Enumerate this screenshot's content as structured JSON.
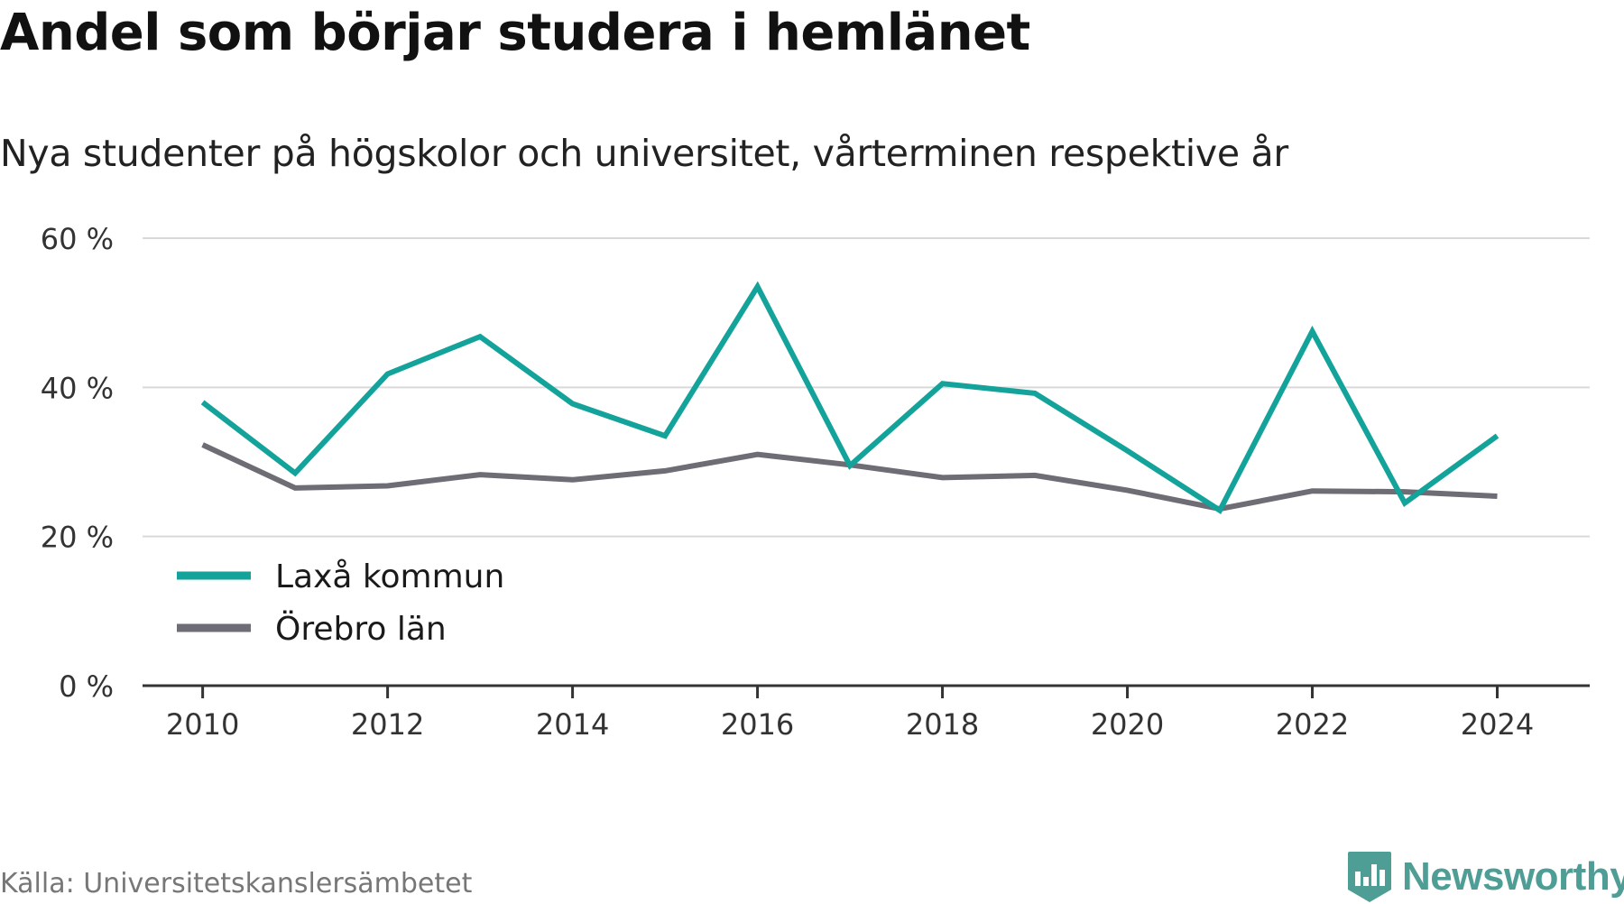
{
  "header": {
    "title": "Andel som börjar studera i hemlänet",
    "subtitle": "Nya studenter på högskolor och universitet, vårterminen respektive år"
  },
  "footer": {
    "source": "Källa: Universitetskanslersämbetet",
    "brand": "Newsworthy",
    "brand_icon": "bar-chart-badge-icon",
    "brand_color": "#4f9e96"
  },
  "chart_data": {
    "type": "line",
    "x": [
      2010,
      2011,
      2012,
      2013,
      2014,
      2015,
      2016,
      2017,
      2018,
      2019,
      2020,
      2021,
      2022,
      2023,
      2024
    ],
    "series": [
      {
        "name": "Laxå kommun",
        "color": "#13a39a",
        "values": [
          38,
          28.5,
          41.8,
          46.8,
          37.8,
          33.5,
          53.5,
          29.5,
          40.5,
          39.2,
          31.5,
          23.5,
          47.5,
          24.5,
          33.5
        ]
      },
      {
        "name": "Örebro län",
        "color": "#6e6c74",
        "values": [
          32.3,
          26.5,
          26.8,
          28.3,
          27.6,
          28.8,
          31.0,
          29.6,
          27.9,
          28.2,
          26.2,
          23.7,
          26.1,
          26.0,
          25.4
        ]
      }
    ],
    "xticks": [
      2010,
      2012,
      2014,
      2016,
      2018,
      2020,
      2022,
      2024
    ],
    "xtick_labels": [
      "2010",
      "2012",
      "2014",
      "2016",
      "2018",
      "2020",
      "2022",
      "2024"
    ],
    "yticks": [
      0,
      20,
      40,
      60
    ],
    "ytick_labels": [
      "0 %",
      "20 %",
      "40 %",
      "60 %"
    ],
    "ylim": [
      0,
      60
    ],
    "xlim": [
      2009.35,
      2025.0
    ],
    "grid": true,
    "legend_position": "bottom-left"
  }
}
